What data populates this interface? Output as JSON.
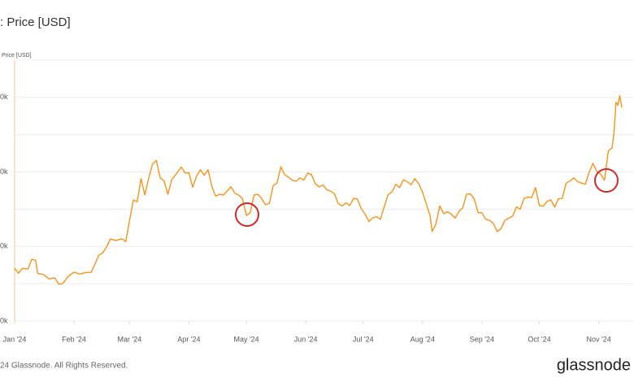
{
  "chart_data": {
    "type": "line",
    "title": ": Price [USD]",
    "y_label": "Price [USD]",
    "footer": "24 Glassnode. All Rights Reserved.",
    "brand": "glassnode",
    "color": "#f7931a",
    "grid": true,
    "xlim": [
      0,
      323
    ],
    "xticks": [
      {
        "value": 0,
        "label": "Jan '24"
      },
      {
        "value": 31,
        "label": "Feb '24"
      },
      {
        "value": 60,
        "label": "Mar '24"
      },
      {
        "value": 91,
        "label": "Apr '24"
      },
      {
        "value": 121,
        "label": "May '24"
      },
      {
        "value": 152,
        "label": "Jun '24"
      },
      {
        "value": 182,
        "label": "Jul '24"
      },
      {
        "value": 213,
        "label": "Aug '24"
      },
      {
        "value": 244,
        "label": "Sep '24"
      },
      {
        "value": 274,
        "label": "Oct '24"
      },
      {
        "value": 305,
        "label": "Nov '24"
      }
    ],
    "ylim": [
      30,
      100
    ],
    "yticks": [
      {
        "value": 90,
        "label": "0k"
      },
      {
        "value": 70,
        "label": "0k"
      },
      {
        "value": 50,
        "label": "0k"
      },
      {
        "value": 30,
        "label": "0k"
      }
    ],
    "ygrid": [
      100,
      80,
      60,
      40
    ],
    "series": [
      {
        "name": "Price [USD]",
        "color": "#f7931a",
        "x": [
          0,
          2,
          4,
          7,
          9,
          11,
          12,
          15,
          18,
          21,
          23,
          25,
          28,
          31,
          34,
          37,
          40,
          42,
          44,
          46,
          48,
          50,
          53,
          56,
          58,
          60,
          62,
          64,
          66,
          68,
          70,
          72,
          74,
          76,
          78,
          80,
          82,
          85,
          87,
          89,
          91,
          93,
          95,
          97,
          99,
          101,
          103,
          105,
          107,
          109,
          111,
          113,
          115,
          117,
          119,
          121,
          123,
          125,
          127,
          129,
          131,
          133,
          135,
          137,
          139,
          141,
          143,
          145,
          147,
          149,
          151,
          153,
          155,
          157,
          159,
          161,
          163,
          165,
          167,
          169,
          171,
          173,
          175,
          177,
          179,
          181,
          183,
          185,
          187,
          189,
          191,
          193,
          195,
          197,
          199,
          201,
          203,
          205,
          207,
          209,
          211,
          213,
          215,
          217,
          218,
          220,
          222,
          224,
          226,
          228,
          230,
          232,
          234,
          236,
          238,
          240,
          242,
          244,
          246,
          248,
          250,
          252,
          254,
          256,
          258,
          260,
          262,
          264,
          266,
          268,
          270,
          272,
          274,
          276,
          278,
          280,
          282,
          284,
          286,
          288,
          290,
          292,
          294,
          296,
          298,
          300,
          302,
          304,
          306,
          308,
          310,
          312,
          313,
          314,
          315,
          316,
          317
        ],
        "values": [
          44.2,
          42.8,
          44.1,
          44.0,
          46.6,
          46.3,
          42.8,
          42.5,
          41.3,
          41.6,
          39.9,
          40.0,
          42.0,
          43.1,
          42.6,
          43.0,
          43.1,
          45.3,
          47.7,
          48.3,
          49.9,
          52.0,
          51.6,
          52.1,
          51.3,
          57.0,
          62.5,
          62.0,
          68.2,
          63.8,
          68.3,
          72.1,
          73.1,
          68.4,
          67.6,
          64.0,
          67.9,
          69.9,
          71.3,
          69.7,
          69.8,
          65.9,
          68.9,
          70.6,
          69.1,
          70.6,
          66.0,
          63.5,
          64.0,
          63.8,
          64.9,
          66.0,
          64.3,
          63.8,
          62.8,
          58.3,
          59.1,
          63.8,
          64.0,
          62.9,
          61.2,
          61.6,
          66.3,
          67.0,
          71.4,
          69.3,
          68.6,
          67.8,
          67.5,
          68.4,
          67.8,
          69.7,
          69.3,
          66.8,
          66.0,
          66.5,
          65.2,
          64.9,
          64.1,
          61.5,
          60.9,
          61.7,
          61.0,
          62.9,
          62.7,
          60.2,
          58.7,
          56.7,
          57.7,
          58.0,
          57.3,
          60.7,
          63.9,
          64.6,
          66.7,
          65.8,
          67.9,
          67.4,
          66.6,
          68.2,
          66.8,
          64.6,
          61.4,
          58.1,
          54.0,
          56.0,
          60.9,
          58.8,
          59.3,
          58.7,
          57.6,
          59.4,
          60.4,
          64.0,
          64.1,
          62.8,
          59.1,
          59.0,
          57.3,
          57.0,
          56.2,
          54.0,
          54.8,
          57.0,
          57.6,
          58.1,
          60.6,
          60.0,
          62.9,
          63.3,
          63.1,
          65.8,
          61.0,
          60.8,
          62.1,
          62.5,
          60.6,
          62.8,
          62.9,
          67.0,
          67.6,
          68.4,
          67.4,
          67.0,
          66.7,
          69.9,
          72.3,
          70.2,
          69.4,
          67.8,
          75.6,
          76.5,
          80.5,
          88.7,
          87.9,
          90.5,
          87.3
        ]
      }
    ]
  }
}
